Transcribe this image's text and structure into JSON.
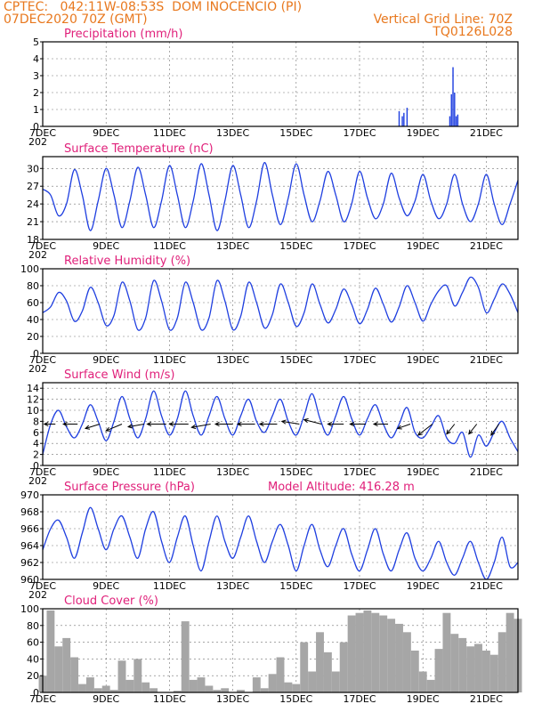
{
  "header": {
    "line1": "CPTEC:   042:11W-08:53S  DOM INOCENCIO (PI)",
    "line2": "07DEC2020 70Z (GMT)",
    "grid_note": "Vertical Grid Line: 70Z",
    "code": "TQ0126L028"
  },
  "x_axis": {
    "start_day": 7,
    "end_day": 22,
    "ticks": [
      {
        "day": 7,
        "label": "7DEC"
      },
      {
        "day": 9,
        "label": "9DEC"
      },
      {
        "day": 11,
        "label": "11DEC"
      },
      {
        "day": 13,
        "label": "13DEC"
      },
      {
        "day": 15,
        "label": "15DEC"
      },
      {
        "day": 17,
        "label": "17DEC"
      },
      {
        "day": 19,
        "label": "19DEC"
      },
      {
        "day": 21,
        "label": "21DEC"
      }
    ],
    "stub": "202"
  },
  "chart_data": [
    {
      "id": "precip",
      "type": "bar",
      "title": "Precipitation (mm/h)",
      "ylim": [
        0,
        5
      ],
      "yticks": [
        0,
        1,
        2,
        3,
        4,
        5
      ],
      "color": "#1f3fe0",
      "x": [
        18.25,
        18.35,
        18.4,
        18.5,
        19.85,
        19.9,
        19.95,
        20.0,
        20.05,
        20.1
      ],
      "values": [
        0.9,
        0.6,
        0.8,
        1.1,
        0.6,
        1.9,
        3.5,
        2.0,
        0.6,
        0.7
      ],
      "grid": true
    },
    {
      "id": "temp",
      "type": "line",
      "title": "Surface Temperature (nC)",
      "ylim": [
        18,
        32
      ],
      "yticks": [
        18,
        21,
        24,
        27,
        30
      ],
      "color": "#1f3fe0",
      "x": [
        7.0,
        7.25,
        7.5,
        7.75,
        8.0,
        8.25,
        8.5,
        8.75,
        9.0,
        9.25,
        9.5,
        9.75,
        10.0,
        10.25,
        10.5,
        10.75,
        11.0,
        11.25,
        11.5,
        11.75,
        12.0,
        12.25,
        12.5,
        12.75,
        13.0,
        13.25,
        13.5,
        13.75,
        14.0,
        14.25,
        14.5,
        14.75,
        15.0,
        15.25,
        15.5,
        15.75,
        16.0,
        16.25,
        16.5,
        16.75,
        17.0,
        17.25,
        17.5,
        17.75,
        18.0,
        18.25,
        18.5,
        18.75,
        19.0,
        19.25,
        19.5,
        19.75,
        20.0,
        20.25,
        20.5,
        20.75,
        21.0,
        21.25,
        21.5,
        21.75,
        22.0
      ],
      "values": [
        26.5,
        25.5,
        22.0,
        24.0,
        29.8,
        25.5,
        19.5,
        24.5,
        30.0,
        25.5,
        20.0,
        24.5,
        30.2,
        25.5,
        20.0,
        24.5,
        30.5,
        25.5,
        20.0,
        24.5,
        30.8,
        25.5,
        19.5,
        24.5,
        30.5,
        25.5,
        20.0,
        24.5,
        31.0,
        25.5,
        20.5,
        25.0,
        30.8,
        25.5,
        21.0,
        24.5,
        29.5,
        25.5,
        21.0,
        24.0,
        29.5,
        25.0,
        21.5,
        24.0,
        29.2,
        25.0,
        22.0,
        24.5,
        29.0,
        24.5,
        21.5,
        24.0,
        29.0,
        24.0,
        21.0,
        24.0,
        29.0,
        24.0,
        20.5,
        24.0,
        28.0
      ],
      "grid": true
    },
    {
      "id": "rh",
      "type": "line",
      "title": "Relative Humidity (%)",
      "ylim": [
        0,
        100
      ],
      "yticks": [
        0,
        20,
        40,
        60,
        80,
        100
      ],
      "color": "#1f3fe0",
      "x": [
        7.0,
        7.25,
        7.5,
        7.75,
        8.0,
        8.25,
        8.5,
        8.75,
        9.0,
        9.25,
        9.5,
        9.75,
        10.0,
        10.25,
        10.5,
        10.75,
        11.0,
        11.25,
        11.5,
        11.75,
        12.0,
        12.25,
        12.5,
        12.75,
        13.0,
        13.25,
        13.5,
        13.75,
        14.0,
        14.25,
        14.5,
        14.75,
        15.0,
        15.25,
        15.5,
        15.75,
        16.0,
        16.25,
        16.5,
        16.75,
        17.0,
        17.25,
        17.5,
        17.75,
        18.0,
        18.25,
        18.5,
        18.75,
        19.0,
        19.25,
        19.5,
        19.75,
        20.0,
        20.25,
        20.5,
        20.75,
        21.0,
        21.25,
        21.5,
        21.75,
        22.0
      ],
      "values": [
        48,
        55,
        72,
        62,
        38,
        50,
        78,
        60,
        33,
        45,
        84,
        62,
        28,
        42,
        86,
        62,
        28,
        42,
        84,
        60,
        28,
        42,
        86,
        62,
        28,
        44,
        84,
        60,
        30,
        46,
        82,
        60,
        32,
        48,
        82,
        58,
        36,
        52,
        76,
        58,
        35,
        52,
        77,
        58,
        37,
        55,
        80,
        60,
        38,
        58,
        74,
        80,
        56,
        72,
        90,
        78,
        48,
        64,
        82,
        70,
        48
      ],
      "grid": true
    },
    {
      "id": "wind",
      "type": "line",
      "title": "Surface Wind (m/s)",
      "ylim": [
        0,
        15
      ],
      "yticks": [
        0,
        2,
        4,
        6,
        8,
        10,
        12,
        14
      ],
      "color": "#1f3fe0",
      "x": [
        7.0,
        7.25,
        7.5,
        7.75,
        8.0,
        8.25,
        8.5,
        8.75,
        9.0,
        9.25,
        9.5,
        9.75,
        10.0,
        10.25,
        10.5,
        10.75,
        11.0,
        11.25,
        11.5,
        11.75,
        12.0,
        12.25,
        12.5,
        12.75,
        13.0,
        13.25,
        13.5,
        13.75,
        14.0,
        14.25,
        14.5,
        14.75,
        15.0,
        15.25,
        15.5,
        15.75,
        16.0,
        16.25,
        16.5,
        16.75,
        17.0,
        17.25,
        17.5,
        17.75,
        18.0,
        18.25,
        18.5,
        18.75,
        19.0,
        19.25,
        19.5,
        19.75,
        20.0,
        20.25,
        20.5,
        20.75,
        21.0,
        21.25,
        21.5,
        21.75,
        22.0
      ],
      "values": [
        2.0,
        7.5,
        10.0,
        7.0,
        5.0,
        7.5,
        11.0,
        8.0,
        4.5,
        8.0,
        12.5,
        8.5,
        5.0,
        8.5,
        13.5,
        9.0,
        5.5,
        8.5,
        13.5,
        9.0,
        5.5,
        9.0,
        12.5,
        8.5,
        5.5,
        9.0,
        12.0,
        8.0,
        6.0,
        9.0,
        12.0,
        8.0,
        5.5,
        9.0,
        13.0,
        8.5,
        5.5,
        9.0,
        12.5,
        8.5,
        5.5,
        8.5,
        11.0,
        7.5,
        5.0,
        7.5,
        10.5,
        6.0,
        5.0,
        7.0,
        9.0,
        5.0,
        4.0,
        6.0,
        1.5,
        5.5,
        3.5,
        6.0,
        8.0,
        5.0,
        2.5
      ],
      "arrows": {
        "y_level": 7.5,
        "x": [
          7.4,
          8.1,
          8.8,
          9.5,
          10.2,
          10.9,
          11.6,
          12.3,
          13.0,
          13.7,
          14.4,
          15.1,
          15.8,
          16.5,
          17.2,
          17.9,
          18.6,
          19.3,
          20.0,
          20.7,
          21.4
        ],
        "dx_days": [
          -0.35,
          -0.45,
          -0.45,
          -0.5,
          -0.5,
          -0.6,
          -0.6,
          -0.6,
          -0.55,
          -0.55,
          -0.55,
          -0.55,
          -0.55,
          -0.5,
          -0.5,
          -0.45,
          -0.4,
          -0.45,
          -0.25,
          -0.25,
          -0.25
        ],
        "dy_units": [
          0,
          0,
          -0.8,
          -1.2,
          -0.5,
          0,
          0,
          -0.6,
          0,
          0,
          0,
          0.5,
          0.8,
          0,
          0,
          0,
          -0.8,
          -2.0,
          -1.8,
          -1.8,
          -2.0
        ]
      },
      "grid": true
    },
    {
      "id": "pressure",
      "type": "line",
      "title": "Surface Pressure (hPa)",
      "subtitle": "Model Altitude: 416.28 m",
      "ylim": [
        960,
        970
      ],
      "yticks": [
        960,
        962,
        964,
        966,
        968,
        970
      ],
      "color": "#1f3fe0",
      "x": [
        7.0,
        7.25,
        7.5,
        7.75,
        8.0,
        8.25,
        8.5,
        8.75,
        9.0,
        9.25,
        9.5,
        9.75,
        10.0,
        10.25,
        10.5,
        10.75,
        11.0,
        11.25,
        11.5,
        11.75,
        12.0,
        12.25,
        12.5,
        12.75,
        13.0,
        13.25,
        13.5,
        13.75,
        14.0,
        14.25,
        14.5,
        14.75,
        15.0,
        15.25,
        15.5,
        15.75,
        16.0,
        16.25,
        16.5,
        16.75,
        17.0,
        17.25,
        17.5,
        17.75,
        18.0,
        18.25,
        18.5,
        18.75,
        19.0,
        19.25,
        19.5,
        19.75,
        20.0,
        20.25,
        20.5,
        20.75,
        21.0,
        21.25,
        21.5,
        21.75,
        22.0
      ],
      "values": [
        963.5,
        966.0,
        967.0,
        965.0,
        962.5,
        965.5,
        968.5,
        966.0,
        963.5,
        966.0,
        967.5,
        965.0,
        962.5,
        966.0,
        968.0,
        964.5,
        962.0,
        965.0,
        967.5,
        964.0,
        961.0,
        964.5,
        967.5,
        964.5,
        962.5,
        965.0,
        967.5,
        964.5,
        962.0,
        964.5,
        966.5,
        964.0,
        961.0,
        964.0,
        966.5,
        963.5,
        961.5,
        964.0,
        966.0,
        963.0,
        961.0,
        963.5,
        966.0,
        963.0,
        961.0,
        963.5,
        965.5,
        962.5,
        961.0,
        962.5,
        964.5,
        962.0,
        960.5,
        962.5,
        964.5,
        962.0,
        960.0,
        962.0,
        965.0,
        961.5,
        962.0
      ],
      "grid": true
    },
    {
      "id": "cloud",
      "type": "bar",
      "title": "Cloud Cover (%)",
      "ylim": [
        0,
        100
      ],
      "yticks": [
        0,
        20,
        40,
        60,
        80,
        100
      ],
      "color": "#a6a6a6",
      "x": [
        7.0,
        7.25,
        7.5,
        7.75,
        8.0,
        8.25,
        8.5,
        8.75,
        9.0,
        9.25,
        9.5,
        9.75,
        10.0,
        10.25,
        10.5,
        10.75,
        11.0,
        11.25,
        11.5,
        11.75,
        12.0,
        12.25,
        12.5,
        12.75,
        13.0,
        13.25,
        13.5,
        13.75,
        14.0,
        14.25,
        14.5,
        14.75,
        15.0,
        15.25,
        15.5,
        15.75,
        16.0,
        16.25,
        16.5,
        16.75,
        17.0,
        17.25,
        17.5,
        17.75,
        18.0,
        18.25,
        18.5,
        18.75,
        19.0,
        19.25,
        19.5,
        19.75,
        20.0,
        20.25,
        20.5,
        20.75,
        21.0,
        21.25,
        21.5,
        21.75,
        22.0
      ],
      "values": [
        20,
        98,
        55,
        65,
        42,
        10,
        18,
        5,
        8,
        3,
        38,
        15,
        40,
        12,
        5,
        0,
        0,
        2,
        85,
        15,
        18,
        8,
        3,
        5,
        0,
        3,
        0,
        18,
        5,
        22,
        42,
        12,
        10,
        60,
        25,
        72,
        48,
        25,
        60,
        92,
        95,
        98,
        95,
        92,
        88,
        82,
        72,
        50,
        25,
        15,
        52,
        95,
        70,
        65,
        55,
        58,
        50,
        45,
        72,
        95,
        88
      ],
      "grid": true
    }
  ]
}
